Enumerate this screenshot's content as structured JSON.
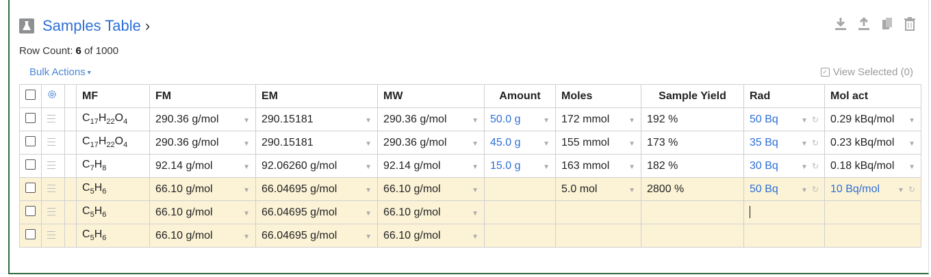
{
  "header": {
    "title": "Samples Table",
    "chevron": "›",
    "logo_icon": "flask-icon"
  },
  "row_count": {
    "label": "Row Count:",
    "shown": "6",
    "of_label": "of 1000"
  },
  "bulk_actions": {
    "label": "Bulk Actions",
    "caret": "▾"
  },
  "view_selected": {
    "label": "View Selected (0)"
  },
  "toolbar": {
    "icons": [
      "download-icon",
      "upload-icon",
      "copy-icon",
      "trash-icon"
    ]
  },
  "columns": [
    "MF",
    "FM",
    "EM",
    "MW",
    "Amount",
    "Moles",
    "Sample Yield",
    "Rad",
    "Mol act"
  ],
  "rows": [
    {
      "mf": "C17H22O4",
      "fm": "290.36 g/mol",
      "em": "290.15181",
      "mw": "290.36 g/mol",
      "amount": "50.0 g",
      "moles": "172 mmol",
      "yield": "192 %",
      "rad": "50 Bq",
      "molact": "0.29 kBq/mol",
      "highlight": false
    },
    {
      "mf": "C17H22O4",
      "fm": "290.36 g/mol",
      "em": "290.15181",
      "mw": "290.36 g/mol",
      "amount": "45.0 g",
      "moles": "155 mmol",
      "yield": "173 %",
      "rad": "35 Bq",
      "molact": "0.23 kBq/mol",
      "highlight": false
    },
    {
      "mf": "C7H8",
      "fm": "92.14 g/mol",
      "em": "92.06260 g/mol",
      "mw": "92.14 g/mol",
      "amount": "15.0 g",
      "moles": "163 mmol",
      "yield": "182 %",
      "rad": "30 Bq",
      "molact": "0.18 kBq/mol",
      "highlight": false
    },
    {
      "mf": "C5H6",
      "fm": "66.10 g/mol",
      "em": "66.04695 g/mol",
      "mw": "66.10 g/mol",
      "amount": "",
      "moles": "5.0 mol",
      "yield": "2800 %",
      "rad": "50 Bq",
      "molact": "10 Bq/mol",
      "highlight": true
    },
    {
      "mf": "C5H6",
      "fm": "66.10 g/mol",
      "em": "66.04695 g/mol",
      "mw": "66.10 g/mol",
      "amount": "",
      "moles": "",
      "yield": "",
      "rad": "",
      "molact": "",
      "highlight": true,
      "rad_caret": true
    },
    {
      "mf": "C5H6",
      "fm": "66.10 g/mol",
      "em": "66.04695 g/mol",
      "mw": "66.10 g/mol",
      "amount": "",
      "moles": "",
      "yield": "",
      "rad": "",
      "molact": "",
      "highlight": true
    }
  ]
}
